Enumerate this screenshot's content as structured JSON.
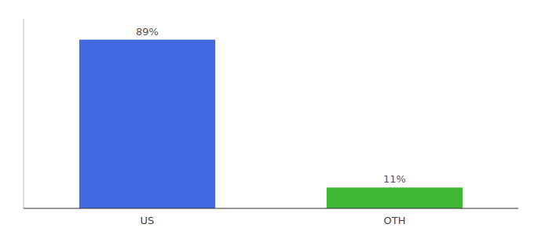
{
  "chart_data": {
    "type": "bar",
    "categories": [
      "US",
      "OTH"
    ],
    "values": [
      89,
      11
    ],
    "value_labels": [
      "89%",
      "11%"
    ],
    "colors": [
      "#4169e1",
      "#3cb832"
    ],
    "ylim": [
      0,
      100
    ],
    "data_labels": true,
    "tick_labels": "x",
    "grid": false
  }
}
